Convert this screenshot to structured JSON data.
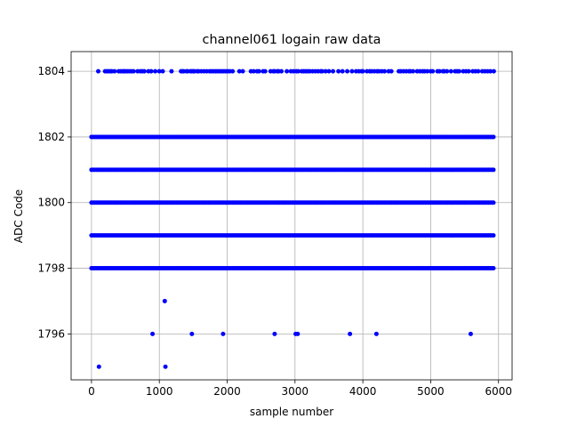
{
  "chart_data": {
    "type": "scatter",
    "title": "channel061 logain raw data",
    "xlabel": "sample number",
    "ylabel": "ADC Code",
    "xlim": [
      -300,
      6200
    ],
    "ylim": [
      1794.6,
      1804.6
    ],
    "xticks": [
      0,
      1000,
      2000,
      3000,
      4000,
      5000,
      6000
    ],
    "yticks": [
      1796,
      1798,
      1800,
      1802,
      1804
    ],
    "grid": true,
    "marker_color": "#0000ff",
    "dense_levels": [
      {
        "y": 1798,
        "x_range": [
          0,
          5940
        ]
      },
      {
        "y": 1799,
        "x_range": [
          0,
          5940
        ]
      },
      {
        "y": 1800,
        "x_range": [
          0,
          5940
        ]
      },
      {
        "y": 1801,
        "x_range": [
          0,
          5940
        ]
      },
      {
        "y": 1802,
        "x_range": [
          0,
          5940
        ]
      }
    ],
    "sparse_level_1804_x": [
      100,
      200,
      230,
      250,
      280,
      300,
      340,
      400,
      430,
      460,
      480,
      500,
      530,
      560,
      590,
      620,
      680,
      720,
      750,
      780,
      840,
      880,
      940,
      1000,
      1050,
      1180,
      1320,
      1340,
      1360,
      1400,
      1420,
      1460,
      1480,
      1500,
      1520,
      1560,
      1580,
      1620,
      1660,
      1700,
      1740,
      1770,
      1800,
      1830,
      1860,
      1890,
      1920,
      1950,
      1980,
      2010,
      2040,
      2080,
      2180,
      2230,
      2350,
      2390,
      2440,
      2470,
      2530,
      2560,
      2640,
      2680,
      2700,
      2740,
      2760,
      2800,
      2880,
      2940,
      2980,
      3020,
      3050,
      3100,
      3130,
      3160,
      3190,
      3220,
      3260,
      3300,
      3340,
      3380,
      3400,
      3450,
      3500,
      3560,
      3640,
      3700,
      3770,
      3840,
      3900,
      3940,
      3980,
      4000,
      4060,
      4100,
      4130,
      4170,
      4210,
      4240,
      4280,
      4320,
      4380,
      4420,
      4530,
      4560,
      4600,
      4640,
      4680,
      4700,
      4740,
      4800,
      4840,
      4880,
      4910,
      4950,
      5000,
      5030,
      5100,
      5130,
      5180,
      5200,
      5240,
      5300,
      5360,
      5390,
      5420,
      5480,
      5520,
      5560,
      5620,
      5660,
      5700,
      5760,
      5800,
      5840,
      5880,
      5930
    ],
    "outliers": [
      {
        "x": 1080,
        "y": 1797
      },
      {
        "x": 900,
        "y": 1796
      },
      {
        "x": 1480,
        "y": 1796
      },
      {
        "x": 1940,
        "y": 1796
      },
      {
        "x": 2700,
        "y": 1796
      },
      {
        "x": 3010,
        "y": 1796
      },
      {
        "x": 3040,
        "y": 1796
      },
      {
        "x": 3810,
        "y": 1796
      },
      {
        "x": 4200,
        "y": 1796
      },
      {
        "x": 5590,
        "y": 1796
      },
      {
        "x": 110,
        "y": 1795
      },
      {
        "x": 1090,
        "y": 1795
      }
    ]
  }
}
